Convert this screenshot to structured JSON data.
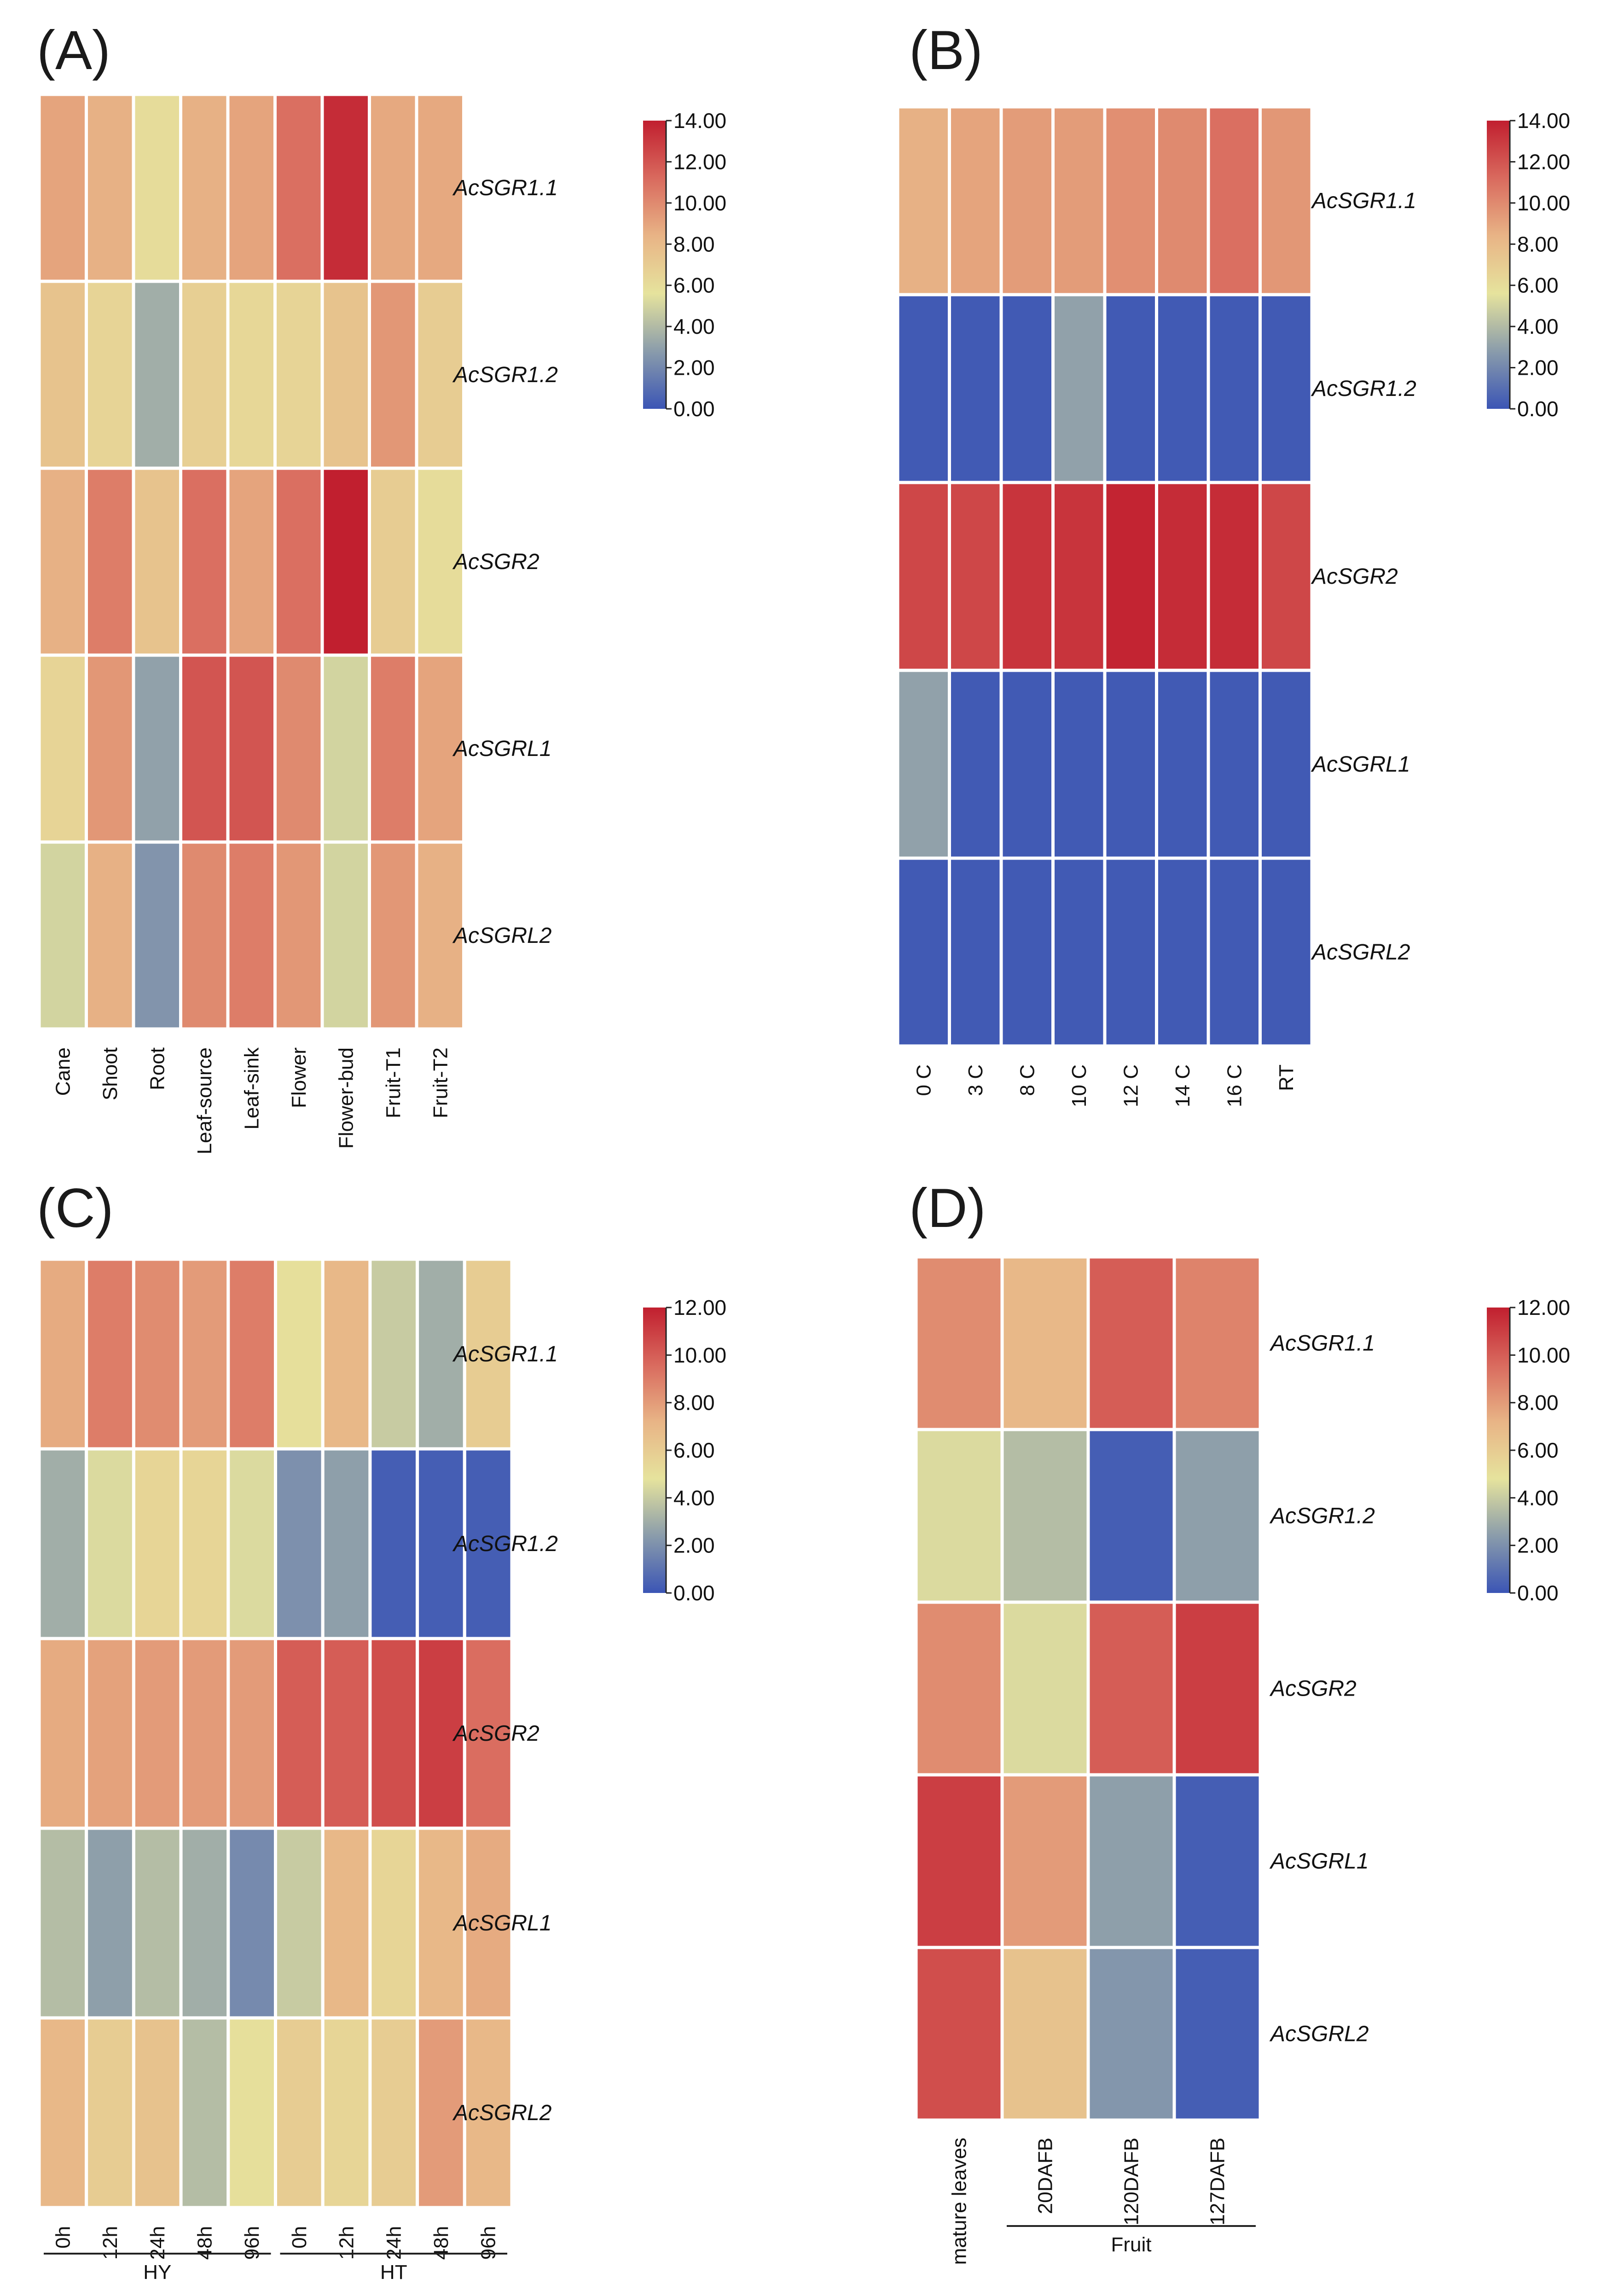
{
  "figure": {
    "panels": [
      "A",
      "B",
      "C",
      "D"
    ],
    "panel_letters": [
      "(A)",
      "(B)",
      "(C)",
      "(D)"
    ]
  },
  "colorscale": {
    "stops": [
      "#3b55b5",
      "#8a9cab",
      "#e6e39d",
      "#e8b486",
      "#d96a5e",
      "#c11f2f"
    ]
  },
  "chart_data": [
    {
      "id": "A",
      "type": "heatmap",
      "title": "(A)",
      "rows": [
        "AcSGR1.1",
        "AcSGR1.2",
        "AcSGR2",
        "AcSGRL1",
        "AcSGRL2"
      ],
      "columns": [
        "Cane",
        "Shoot",
        "Root",
        "Leaf-source",
        "Leaf-sink",
        "Flower",
        "Flower-bud",
        "Fruit-T1",
        "Fruit-T2"
      ],
      "values": [
        [
          9.0,
          8.5,
          6.0,
          8.5,
          9.0,
          11.0,
          13.5,
          8.8,
          8.8
        ],
        [
          7.5,
          6.5,
          3.5,
          6.8,
          6.3,
          6.5,
          7.5,
          9.5,
          7.0
        ],
        [
          8.5,
          10.5,
          7.5,
          11.0,
          9.0,
          11.0,
          14.0,
          7.0,
          6.0
        ],
        [
          6.5,
          9.5,
          3.0,
          12.0,
          12.0,
          10.0,
          5.0,
          10.5,
          9.0
        ],
        [
          5.0,
          8.5,
          2.5,
          10.0,
          10.5,
          9.5,
          5.0,
          9.5,
          8.5
        ]
      ],
      "vmin": 0,
      "vmax": 14,
      "colorbar_ticks": [
        "14.00",
        "12.00",
        "10.00",
        "8.00",
        "6.00",
        "4.00",
        "2.00",
        "0.00"
      ],
      "groups": []
    },
    {
      "id": "B",
      "type": "heatmap",
      "title": "(B)",
      "rows": [
        "AcSGR1.1",
        "AcSGR1.2",
        "AcSGR2",
        "AcSGRL1",
        "AcSGRL2"
      ],
      "columns": [
        "0 C",
        "3 C",
        "8 C",
        "10 C",
        "12 C",
        "14 C",
        "16 C",
        "RT"
      ],
      "values": [
        [
          8.5,
          9.0,
          9.3,
          9.3,
          9.8,
          10.0,
          11.0,
          9.5
        ],
        [
          0.2,
          0.2,
          0.2,
          3.0,
          0.2,
          0.2,
          0.2,
          0.2
        ],
        [
          12.5,
          12.5,
          13.2,
          13.2,
          13.8,
          13.5,
          13.5,
          12.5
        ],
        [
          3.0,
          0.2,
          0.2,
          0.2,
          0.2,
          0.2,
          0.2,
          0.2
        ],
        [
          0.2,
          0.2,
          0.2,
          0.2,
          0.2,
          0.2,
          0.2,
          0.2
        ]
      ],
      "vmin": 0,
      "vmax": 14,
      "colorbar_ticks": [
        "14.00",
        "12.00",
        "10.00",
        "8.00",
        "6.00",
        "4.00",
        "2.00",
        "0.00"
      ],
      "groups": []
    },
    {
      "id": "C",
      "type": "heatmap",
      "title": "(C)",
      "rows": [
        "AcSGR1.1",
        "AcSGR1.2",
        "AcSGR2",
        "AcSGRL1",
        "AcSGRL2"
      ],
      "columns": [
        "0h",
        "12h",
        "24h",
        "48h",
        "96h",
        "0h",
        "12h",
        "24h",
        "48h",
        "96h"
      ],
      "values": [
        [
          7.5,
          9.0,
          8.5,
          8.0,
          9.0,
          5.0,
          7.0,
          4.0,
          3.0,
          6.0
        ],
        [
          3.0,
          4.5,
          5.5,
          5.5,
          4.5,
          2.0,
          2.5,
          0.3,
          0.3,
          0.3
        ],
        [
          7.5,
          7.8,
          8.0,
          8.0,
          8.0,
          10.0,
          10.0,
          10.5,
          11.0,
          9.5
        ],
        [
          3.5,
          2.5,
          3.5,
          3.0,
          1.8,
          4.0,
          7.0,
          5.5,
          7.0,
          7.5
        ],
        [
          7.0,
          6.0,
          6.5,
          3.5,
          5.0,
          6.0,
          5.5,
          6.0,
          8.0,
          7.0
        ]
      ],
      "vmin": 0,
      "vmax": 12,
      "colorbar_ticks": [
        "12.00",
        "10.00",
        "8.00",
        "6.00",
        "4.00",
        "2.00",
        "0.00"
      ],
      "groups": [
        {
          "label": "HY",
          "start": 0,
          "end": 4
        },
        {
          "label": "HT",
          "start": 5,
          "end": 9
        }
      ]
    },
    {
      "id": "D",
      "type": "heatmap",
      "title": "(D)",
      "rows": [
        "AcSGR1.1",
        "AcSGR1.2",
        "AcSGR2",
        "AcSGRL1",
        "AcSGRL2"
      ],
      "columns": [
        "mature leaves",
        "20DAFB",
        "120DAFB",
        "127DAFB"
      ],
      "values": [
        [
          8.5,
          7.0,
          10.0,
          8.8
        ],
        [
          4.5,
          3.5,
          0.3,
          2.5
        ],
        [
          8.5,
          4.5,
          10.0,
          11.0
        ],
        [
          11.0,
          8.0,
          2.5,
          0.3
        ],
        [
          10.5,
          6.5,
          2.2,
          0.3
        ]
      ],
      "vmin": 0,
      "vmax": 12,
      "colorbar_ticks": [
        "12.00",
        "10.00",
        "8.00",
        "6.00",
        "4.00",
        "2.00",
        "0.00"
      ],
      "groups": [
        {
          "label": "Fruit",
          "start": 1,
          "end": 3
        }
      ]
    }
  ]
}
